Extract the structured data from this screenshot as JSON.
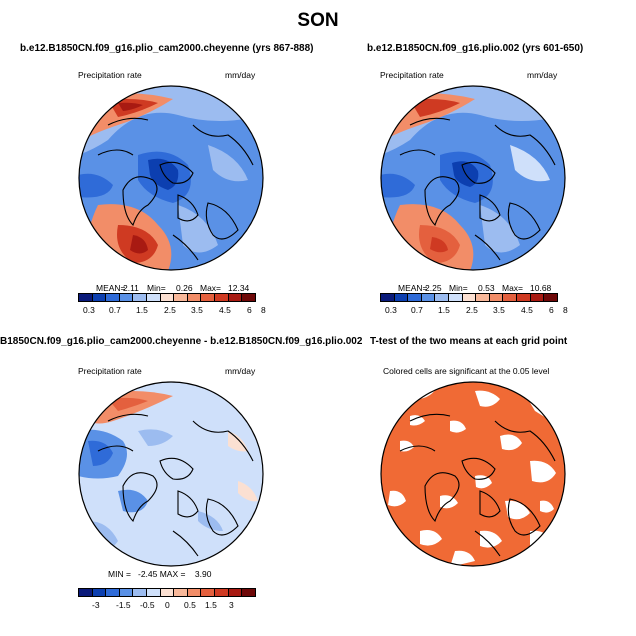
{
  "figure_title": "SON",
  "colors": {
    "scale13": [
      "#0a1a7a",
      "#0c3fb0",
      "#2f6bd8",
      "#5a91e6",
      "#9cbcf0",
      "#cfe0fa",
      "#fbe0d2",
      "#f8b89a",
      "#f28d68",
      "#e4603e",
      "#cf3a22",
      "#a81a12",
      "#6e0808"
    ],
    "significant": "#f06a35",
    "land": "#000000"
  },
  "panels": [
    {
      "title": "b.e12.B1850CN.f09_g16.plio_cam2000.cheyenne (yrs 867-888)",
      "var_label": "Precipitation rate",
      "units": "mm/day",
      "stats": {
        "mean_label": "MEAN=",
        "mean": "2.11",
        "min_label": "Min=",
        "min": "0.26",
        "max_label": "Max=",
        "max": "12.34"
      },
      "ticks": [
        "0.3",
        "0.7",
        "1.5",
        "2.5",
        "3.5",
        "4.5",
        "6",
        "8"
      ]
    },
    {
      "title": "b.e12.B1850CN.f09_g16.plio.002 (yrs 601-650)",
      "var_label": "Precipitation rate",
      "units": "mm/day",
      "stats": {
        "mean_label": "MEAN=",
        "mean": "2.25",
        "min_label": "Min=",
        "min": "0.53",
        "max_label": "Max=",
        "max": "10.68"
      },
      "ticks": [
        "0.3",
        "0.7",
        "1.5",
        "2.5",
        "3.5",
        "4.5",
        "6",
        "8"
      ]
    },
    {
      "title": "B1850CN.f09_g16.plio_cam2000.cheyenne - b.e12.B1850CN.f09_g16.plio.002",
      "var_label": "Precipitation rate",
      "units": "mm/day",
      "stats_text": "MIN =   -2.45 MAX =    3.90",
      "ticks": [
        "-3",
        "-1.5",
        "-0.5",
        "0",
        "0.5",
        "1.5",
        "3"
      ]
    },
    {
      "title": "T-test of the two means at each grid point",
      "subtitle": "Colored cells are significant at the 0.05 level"
    }
  ]
}
